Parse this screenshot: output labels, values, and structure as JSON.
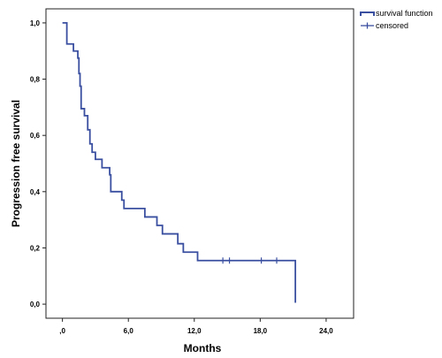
{
  "chart_data": {
    "type": "line",
    "step": true,
    "xlabel": "Months",
    "ylabel": "Progression free survival",
    "xlim": [
      -1.5,
      26.5
    ],
    "ylim": [
      -0.05,
      1.05
    ],
    "xticks": [
      {
        "value": 0,
        "label": ",0"
      },
      {
        "value": 6,
        "label": "6,0"
      },
      {
        "value": 12,
        "label": "12,0"
      },
      {
        "value": 18,
        "label": "18,0"
      },
      {
        "value": 24,
        "label": "24,0"
      }
    ],
    "yticks": [
      {
        "value": 0,
        "label": "0,0"
      },
      {
        "value": 0.2,
        "label": "0,2"
      },
      {
        "value": 0.4,
        "label": "0,4"
      },
      {
        "value": 0.6,
        "label": "0,6"
      },
      {
        "value": 0.8,
        "label": "0,8"
      },
      {
        "value": 1.0,
        "label": "1,0"
      }
    ],
    "legend": {
      "position": "top-right",
      "entries": [
        "survival function",
        "censored"
      ]
    },
    "series": [
      {
        "name": "survival function",
        "color": "#3a4fa0",
        "steps": [
          {
            "x": 0.0,
            "y": 1.0
          },
          {
            "x": 0.4,
            "y": 0.925
          },
          {
            "x": 1.0,
            "y": 0.9
          },
          {
            "x": 1.4,
            "y": 0.875
          },
          {
            "x": 1.5,
            "y": 0.82
          },
          {
            "x": 1.6,
            "y": 0.775
          },
          {
            "x": 1.7,
            "y": 0.695
          },
          {
            "x": 2.0,
            "y": 0.67
          },
          {
            "x": 2.3,
            "y": 0.62
          },
          {
            "x": 2.5,
            "y": 0.57
          },
          {
            "x": 2.7,
            "y": 0.54
          },
          {
            "x": 3.0,
            "y": 0.515
          },
          {
            "x": 3.6,
            "y": 0.485
          },
          {
            "x": 4.3,
            "y": 0.46
          },
          {
            "x": 4.4,
            "y": 0.4
          },
          {
            "x": 5.4,
            "y": 0.37
          },
          {
            "x": 5.6,
            "y": 0.34
          },
          {
            "x": 7.5,
            "y": 0.31
          },
          {
            "x": 8.6,
            "y": 0.28
          },
          {
            "x": 9.1,
            "y": 0.25
          },
          {
            "x": 10.5,
            "y": 0.215
          },
          {
            "x": 11.0,
            "y": 0.185
          },
          {
            "x": 12.3,
            "y": 0.155
          },
          {
            "x": 21.2,
            "y": 0.005
          }
        ],
        "end_x": 21.2,
        "censored": [
          {
            "x": 14.6,
            "y": 0.155
          },
          {
            "x": 15.2,
            "y": 0.155
          },
          {
            "x": 18.1,
            "y": 0.155
          },
          {
            "x": 19.5,
            "y": 0.155
          }
        ]
      }
    ]
  }
}
